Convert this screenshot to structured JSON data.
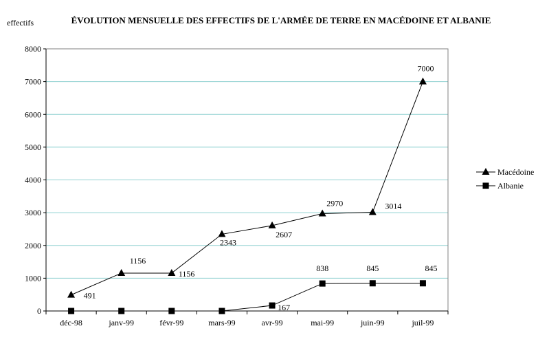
{
  "chart_data": {
    "type": "line",
    "title": "ÉVOLUTION MENSUELLE DES EFFECTIFS DE L'ARMÉE DE TERRE EN MACÉDOINE ET ALBANIE",
    "ylabel": "effectifs",
    "xlabel": "",
    "categories": [
      "déc-98",
      "janv-99",
      "févr-99",
      "mars-99",
      "avr-99",
      "mai-99",
      "juin-99",
      "juil-99"
    ],
    "ylim": [
      0,
      8000
    ],
    "yticks": [
      0,
      1000,
      2000,
      3000,
      4000,
      5000,
      6000,
      7000,
      8000
    ],
    "grid": true,
    "legend_position": "right",
    "series": [
      {
        "name": "Macédoine",
        "marker": "triangle",
        "values": [
          491,
          1156,
          1156,
          2343,
          2607,
          2970,
          3014,
          7000
        ],
        "labels": [
          "491",
          "1156",
          "1156",
          "2343",
          "2607",
          "2970",
          "3014",
          "7000"
        ]
      },
      {
        "name": "Albanie",
        "marker": "square",
        "values": [
          0,
          0,
          0,
          0,
          167,
          838,
          845,
          845
        ],
        "labels": [
          "",
          "",
          "",
          "",
          "167",
          "838",
          "845",
          "845"
        ]
      }
    ],
    "colors": {
      "grid": "#8fd0d0",
      "line": "#000000",
      "axis": "#000000"
    }
  }
}
